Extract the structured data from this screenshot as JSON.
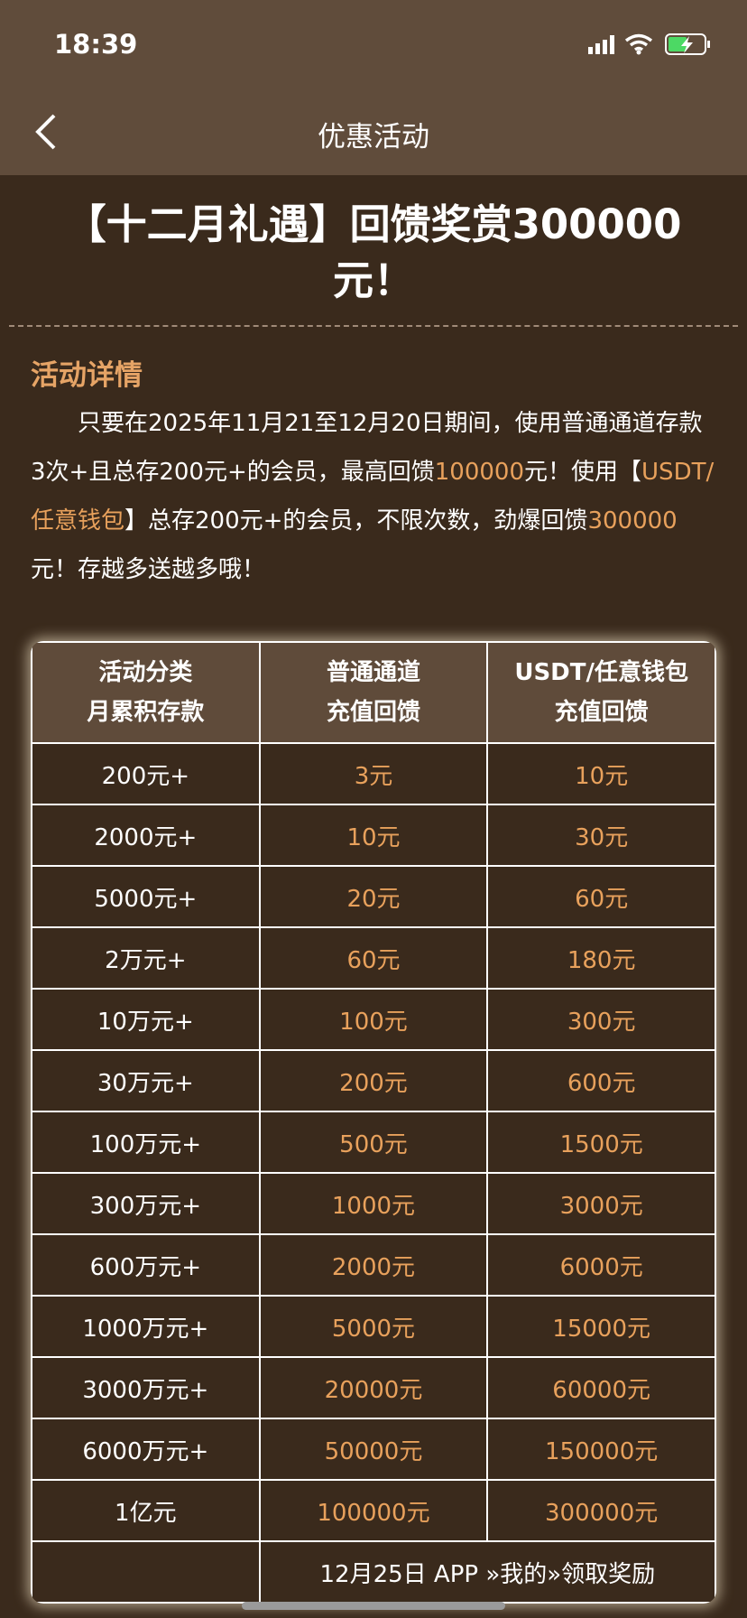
{
  "status_bar": {
    "time": "18:39"
  },
  "nav": {
    "title": "优惠活动"
  },
  "headline": "【十二月礼遇】回馈奖赏300000元！",
  "details": {
    "title": "活动详情",
    "paragraph": [
      {
        "text": "只要在2025年11月21至12月20日期间，使用普通通道存款3次+且总存200元+的会员，最高回馈",
        "highlight": false
      },
      {
        "text": "100000",
        "highlight": true
      },
      {
        "text": "元！使用【",
        "highlight": false
      },
      {
        "text": "USDT/任意钱包",
        "highlight": true
      },
      {
        "text": "】总存200元+的会员，不限次数，劲爆回馈",
        "highlight": false
      },
      {
        "text": "300000",
        "highlight": true
      },
      {
        "text": "元！存越多送越多哦！",
        "highlight": false
      }
    ]
  },
  "table": {
    "header": [
      [
        "活动分类",
        "月累积存款"
      ],
      [
        "普通通道",
        "充值回馈"
      ],
      [
        "USDT/任意钱包",
        "充值回馈"
      ]
    ],
    "rows": [
      [
        "200元+",
        "3元",
        "10元"
      ],
      [
        "2000元+",
        "10元",
        "30元"
      ],
      [
        "5000元+",
        "20元",
        "60元"
      ],
      [
        "2万元+",
        "60元",
        "180元"
      ],
      [
        "10万元+",
        "100元",
        "300元"
      ],
      [
        "30万元+",
        "200元",
        "600元"
      ],
      [
        "100万元+",
        "500元",
        "1500元"
      ],
      [
        "300万元+",
        "1000元",
        "3000元"
      ],
      [
        "600万元+",
        "2000元",
        "6000元"
      ],
      [
        "1000万元+",
        "5000元",
        "15000元"
      ],
      [
        "3000万元+",
        "20000元",
        "60000元"
      ],
      [
        "6000万元+",
        "50000元",
        "150000元"
      ],
      [
        "1亿元",
        "100000元",
        "300000元"
      ]
    ],
    "footer_note": "12月25日 APP »我的»领取奖励"
  }
}
